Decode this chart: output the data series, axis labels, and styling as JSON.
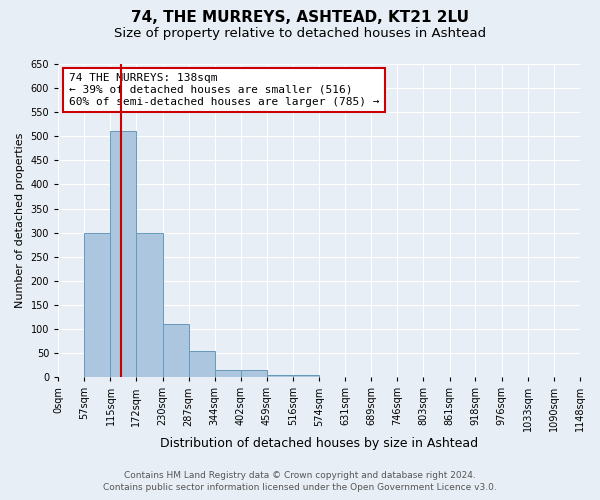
{
  "title": "74, THE MURREYS, ASHTEAD, KT21 2LU",
  "subtitle": "Size of property relative to detached houses in Ashtead",
  "xlabel": "Distribution of detached houses by size in Ashtead",
  "ylabel": "Number of detached properties",
  "bin_edges": [
    0,
    57,
    115,
    172,
    230,
    287,
    344,
    402,
    459,
    516,
    574,
    631,
    689,
    746,
    803,
    861,
    918,
    976,
    1033,
    1090,
    1148
  ],
  "bin_labels": [
    "0sqm",
    "57sqm",
    "115sqm",
    "172sqm",
    "230sqm",
    "287sqm",
    "344sqm",
    "402sqm",
    "459sqm",
    "516sqm",
    "574sqm",
    "631sqm",
    "689sqm",
    "746sqm",
    "803sqm",
    "861sqm",
    "918sqm",
    "976sqm",
    "1033sqm",
    "1090sqm",
    "1148sqm"
  ],
  "counts": [
    0,
    300,
    510,
    300,
    110,
    55,
    15,
    15,
    5,
    5,
    0,
    0,
    0,
    0,
    0,
    0,
    0,
    0,
    0,
    0
  ],
  "bar_color": "#adc6e0",
  "bar_edge_color": "#6699bb",
  "vline_x": 138,
  "vline_color": "#cc0000",
  "annotation_line1": "74 THE MURREYS: 138sqm",
  "annotation_line2": "← 39% of detached houses are smaller (516)",
  "annotation_line3": "60% of semi-detached houses are larger (785) →",
  "annotation_box_color": "#ffffff",
  "annotation_box_edge_color": "#cc0000",
  "ylim": [
    0,
    650
  ],
  "yticks": [
    0,
    50,
    100,
    150,
    200,
    250,
    300,
    350,
    400,
    450,
    500,
    550,
    600,
    650
  ],
  "bg_color": "#e8eef5",
  "grid_color": "#ffffff",
  "footer_line1": "Contains HM Land Registry data © Crown copyright and database right 2024.",
  "footer_line2": "Contains public sector information licensed under the Open Government Licence v3.0.",
  "title_fontsize": 11,
  "subtitle_fontsize": 9.5,
  "xlabel_fontsize": 9,
  "ylabel_fontsize": 8,
  "tick_fontsize": 7,
  "annotation_fontsize": 8,
  "footer_fontsize": 6.5
}
